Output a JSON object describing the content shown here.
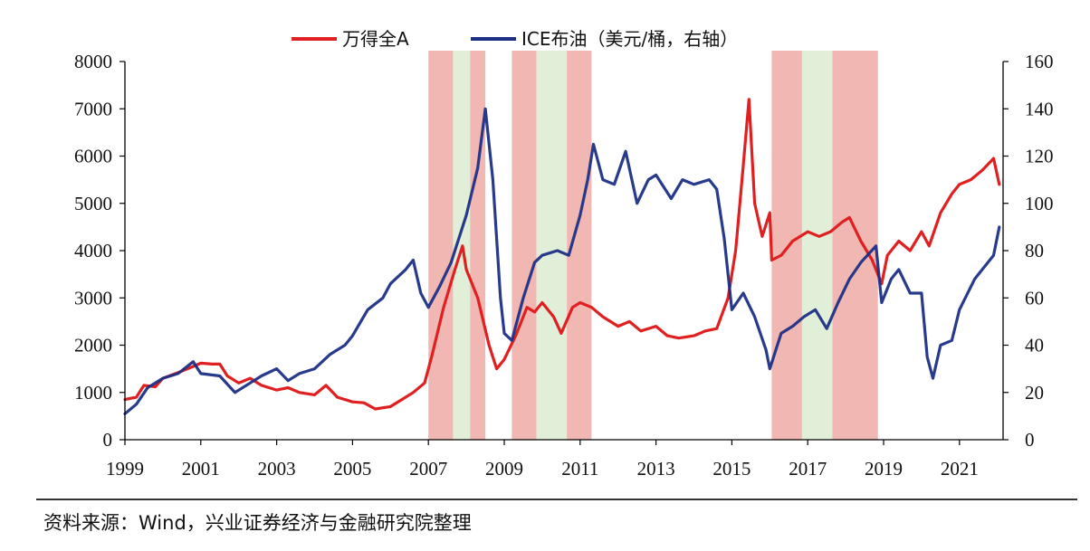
{
  "chart_data": {
    "type": "line",
    "legend_position": "top-center",
    "x_ticks": [
      "1999",
      "2001",
      "2003",
      "2005",
      "2007",
      "2009",
      "2011",
      "2013",
      "2015",
      "2017",
      "2019",
      "2021"
    ],
    "xlim": [
      1999.0,
      2022.15
    ],
    "left_axis": {
      "ylim": [
        0,
        8000
      ],
      "ticks": [
        "0",
        "1000",
        "2000",
        "3000",
        "4000",
        "5000",
        "6000",
        "7000",
        "8000"
      ]
    },
    "right_axis": {
      "ylim": [
        0,
        160
      ],
      "ticks": [
        "0",
        "20",
        "40",
        "60",
        "80",
        "100",
        "120",
        "140",
        "160"
      ]
    },
    "series": [
      {
        "name": "万得全A",
        "axis": "left",
        "color": "#e02020",
        "points": [
          [
            1999.0,
            850
          ],
          [
            1999.3,
            900
          ],
          [
            1999.5,
            1150
          ],
          [
            1999.8,
            1120
          ],
          [
            2000.0,
            1300
          ],
          [
            2000.5,
            1450
          ],
          [
            2000.8,
            1550
          ],
          [
            2001.0,
            1620
          ],
          [
            2001.3,
            1600
          ],
          [
            2001.5,
            1600
          ],
          [
            2001.7,
            1350
          ],
          [
            2002.0,
            1200
          ],
          [
            2002.3,
            1300
          ],
          [
            2002.6,
            1150
          ],
          [
            2003.0,
            1050
          ],
          [
            2003.3,
            1100
          ],
          [
            2003.6,
            1000
          ],
          [
            2004.0,
            950
          ],
          [
            2004.3,
            1150
          ],
          [
            2004.6,
            900
          ],
          [
            2005.0,
            800
          ],
          [
            2005.3,
            780
          ],
          [
            2005.6,
            650
          ],
          [
            2006.0,
            700
          ],
          [
            2006.3,
            850
          ],
          [
            2006.6,
            1000
          ],
          [
            2006.9,
            1200
          ],
          [
            2007.1,
            1800
          ],
          [
            2007.4,
            2800
          ],
          [
            2007.7,
            3600
          ],
          [
            2007.9,
            4100
          ],
          [
            2008.0,
            3600
          ],
          [
            2008.3,
            3000
          ],
          [
            2008.6,
            2000
          ],
          [
            2008.8,
            1500
          ],
          [
            2009.0,
            1700
          ],
          [
            2009.3,
            2200
          ],
          [
            2009.6,
            2800
          ],
          [
            2009.8,
            2700
          ],
          [
            2010.0,
            2900
          ],
          [
            2010.3,
            2600
          ],
          [
            2010.5,
            2250
          ],
          [
            2010.8,
            2800
          ],
          [
            2011.0,
            2900
          ],
          [
            2011.3,
            2800
          ],
          [
            2011.6,
            2600
          ],
          [
            2012.0,
            2400
          ],
          [
            2012.3,
            2500
          ],
          [
            2012.6,
            2300
          ],
          [
            2013.0,
            2400
          ],
          [
            2013.3,
            2200
          ],
          [
            2013.6,
            2150
          ],
          [
            2014.0,
            2200
          ],
          [
            2014.3,
            2300
          ],
          [
            2014.6,
            2350
          ],
          [
            2014.9,
            3000
          ],
          [
            2015.1,
            4000
          ],
          [
            2015.3,
            5800
          ],
          [
            2015.45,
            7200
          ],
          [
            2015.6,
            5000
          ],
          [
            2015.8,
            4300
          ],
          [
            2016.0,
            4800
          ],
          [
            2016.05,
            3800
          ],
          [
            2016.3,
            3900
          ],
          [
            2016.6,
            4200
          ],
          [
            2017.0,
            4400
          ],
          [
            2017.3,
            4300
          ],
          [
            2017.6,
            4400
          ],
          [
            2017.9,
            4600
          ],
          [
            2018.1,
            4700
          ],
          [
            2018.4,
            4200
          ],
          [
            2018.7,
            3800
          ],
          [
            2018.95,
            3300
          ],
          [
            2019.1,
            3900
          ],
          [
            2019.4,
            4200
          ],
          [
            2019.7,
            4000
          ],
          [
            2020.0,
            4400
          ],
          [
            2020.2,
            4100
          ],
          [
            2020.5,
            4800
          ],
          [
            2020.8,
            5200
          ],
          [
            2021.0,
            5400
          ],
          [
            2021.3,
            5500
          ],
          [
            2021.6,
            5700
          ],
          [
            2021.9,
            5950
          ],
          [
            2022.05,
            5400
          ]
        ]
      },
      {
        "name": "ICE布油（美元/桶，右轴）",
        "axis": "right",
        "color": "#1c2f86",
        "points": [
          [
            1999.0,
            11
          ],
          [
            1999.3,
            15
          ],
          [
            1999.6,
            22
          ],
          [
            2000.0,
            26
          ],
          [
            2000.4,
            28
          ],
          [
            2000.8,
            33
          ],
          [
            2001.0,
            28
          ],
          [
            2001.5,
            27
          ],
          [
            2001.9,
            20
          ],
          [
            2002.3,
            24
          ],
          [
            2002.6,
            27
          ],
          [
            2003.0,
            30
          ],
          [
            2003.3,
            25
          ],
          [
            2003.6,
            28
          ],
          [
            2004.0,
            30
          ],
          [
            2004.4,
            36
          ],
          [
            2004.8,
            40
          ],
          [
            2005.0,
            44
          ],
          [
            2005.4,
            55
          ],
          [
            2005.8,
            60
          ],
          [
            2006.0,
            66
          ],
          [
            2006.4,
            72
          ],
          [
            2006.6,
            76
          ],
          [
            2006.8,
            62
          ],
          [
            2007.0,
            56
          ],
          [
            2007.3,
            65
          ],
          [
            2007.6,
            75
          ],
          [
            2007.9,
            90
          ],
          [
            2008.0,
            95
          ],
          [
            2008.3,
            115
          ],
          [
            2008.5,
            140
          ],
          [
            2008.7,
            110
          ],
          [
            2008.9,
            60
          ],
          [
            2009.0,
            45
          ],
          [
            2009.2,
            42
          ],
          [
            2009.5,
            60
          ],
          [
            2009.8,
            75
          ],
          [
            2010.0,
            78
          ],
          [
            2010.4,
            80
          ],
          [
            2010.7,
            78
          ],
          [
            2011.0,
            95
          ],
          [
            2011.2,
            110
          ],
          [
            2011.35,
            125
          ],
          [
            2011.6,
            110
          ],
          [
            2011.9,
            108
          ],
          [
            2012.2,
            122
          ],
          [
            2012.5,
            100
          ],
          [
            2012.8,
            110
          ],
          [
            2013.0,
            112
          ],
          [
            2013.4,
            102
          ],
          [
            2013.7,
            110
          ],
          [
            2014.0,
            108
          ],
          [
            2014.4,
            110
          ],
          [
            2014.6,
            106
          ],
          [
            2014.8,
            85
          ],
          [
            2015.0,
            55
          ],
          [
            2015.3,
            62
          ],
          [
            2015.6,
            52
          ],
          [
            2015.9,
            38
          ],
          [
            2016.0,
            30
          ],
          [
            2016.3,
            45
          ],
          [
            2016.6,
            48
          ],
          [
            2016.9,
            52
          ],
          [
            2017.2,
            55
          ],
          [
            2017.5,
            47
          ],
          [
            2017.8,
            58
          ],
          [
            2018.1,
            68
          ],
          [
            2018.4,
            75
          ],
          [
            2018.8,
            82
          ],
          [
            2018.95,
            58
          ],
          [
            2019.2,
            68
          ],
          [
            2019.4,
            72
          ],
          [
            2019.7,
            62
          ],
          [
            2020.0,
            62
          ],
          [
            2020.15,
            35
          ],
          [
            2020.3,
            26
          ],
          [
            2020.5,
            40
          ],
          [
            2020.8,
            42
          ],
          [
            2021.0,
            55
          ],
          [
            2021.4,
            68
          ],
          [
            2021.7,
            74
          ],
          [
            2021.9,
            78
          ],
          [
            2022.05,
            90
          ]
        ]
      }
    ],
    "shaded_periods": [
      {
        "start": 2007.0,
        "end": 2007.65,
        "color": "#f0b7b3"
      },
      {
        "start": 2007.65,
        "end": 2008.1,
        "color": "#e1efd9"
      },
      {
        "start": 2008.1,
        "end": 2008.5,
        "color": "#f0b7b3"
      },
      {
        "start": 2009.2,
        "end": 2009.85,
        "color": "#f0b7b3"
      },
      {
        "start": 2009.85,
        "end": 2010.65,
        "color": "#e1efd9"
      },
      {
        "start": 2010.65,
        "end": 2011.3,
        "color": "#f0b7b3"
      },
      {
        "start": 2016.05,
        "end": 2016.85,
        "color": "#f0b7b3"
      },
      {
        "start": 2016.85,
        "end": 2017.65,
        "color": "#e1efd9"
      },
      {
        "start": 2017.65,
        "end": 2018.85,
        "color": "#f0b7b3"
      }
    ]
  },
  "source_text": "资料来源：Wind，兴业证券经济与金融研究院整理"
}
